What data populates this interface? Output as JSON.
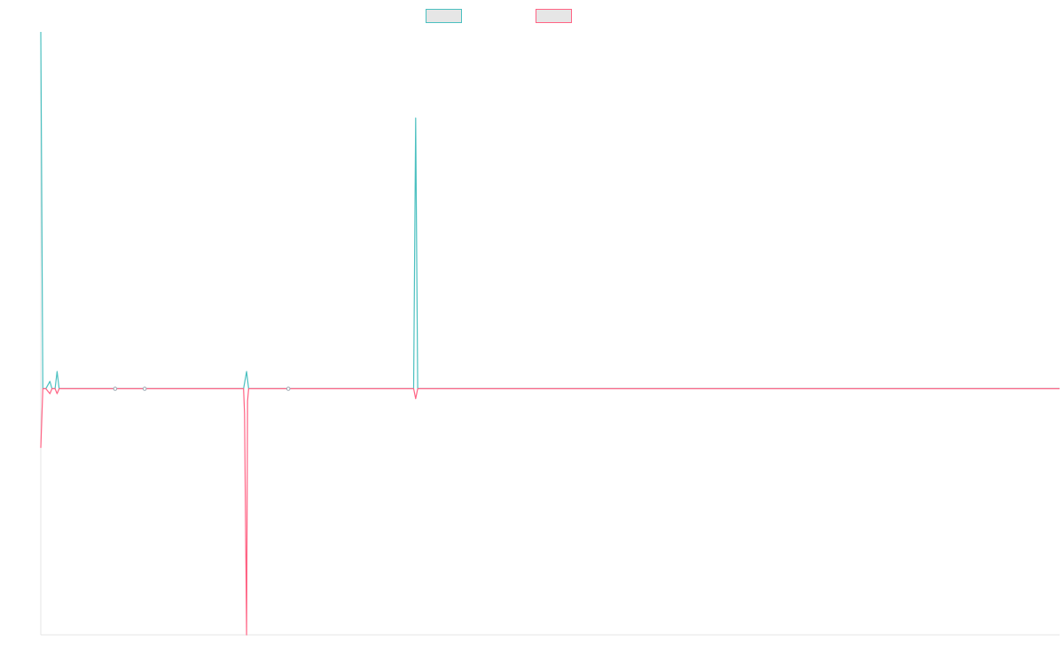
{
  "chart_data": {
    "type": "line",
    "title": "",
    "xlabel": "",
    "ylabel": "",
    "legend": {
      "placement": "top-center",
      "entries": [
        {
          "series": 0,
          "label": ""
        },
        {
          "series": 1,
          "label": ""
        }
      ]
    },
    "grid": false,
    "axis_line_color": "#e6e6e6",
    "background": "#ffffff",
    "xlim": [
      0,
      1000
    ],
    "ylim": [
      -100,
      145
    ],
    "series": [
      {
        "color": "#4bc0c0",
        "fill": "#e6e6e6",
        "points": [
          [
            0,
            145
          ],
          [
            2,
            0
          ],
          [
            5,
            0
          ],
          [
            9,
            3
          ],
          [
            11,
            0
          ],
          [
            14,
            0
          ],
          [
            16,
            7
          ],
          [
            18,
            0
          ],
          [
            60,
            0
          ],
          [
            63,
            0
          ],
          [
            73,
            0
          ],
          [
            89,
            0
          ],
          [
            92,
            0
          ],
          [
            199,
            0
          ],
          [
            202,
            7
          ],
          [
            204,
            0
          ],
          [
            207,
            0
          ],
          [
            243,
            0
          ],
          [
            250,
            0
          ],
          [
            366,
            0
          ],
          [
            368,
            110
          ],
          [
            370,
            0
          ],
          [
            372,
            0
          ],
          [
            1000,
            0
          ]
        ]
      },
      {
        "color": "#ff6384",
        "fill": "#e6e6e6",
        "points": [
          [
            0,
            -24
          ],
          [
            2,
            0
          ],
          [
            5,
            0
          ],
          [
            9,
            -2
          ],
          [
            11,
            0
          ],
          [
            14,
            0
          ],
          [
            16,
            -2
          ],
          [
            18,
            0
          ],
          [
            60,
            0
          ],
          [
            63,
            0
          ],
          [
            73,
            0
          ],
          [
            89,
            0
          ],
          [
            92,
            0
          ],
          [
            199,
            0
          ],
          [
            200,
            -10
          ],
          [
            202,
            -100
          ],
          [
            203,
            -5
          ],
          [
            204,
            0
          ],
          [
            207,
            0
          ],
          [
            243,
            0
          ],
          [
            250,
            0
          ],
          [
            366,
            0
          ],
          [
            368,
            -4
          ],
          [
            370,
            0
          ],
          [
            372,
            0
          ],
          [
            1000,
            0
          ]
        ]
      }
    ],
    "markers": [
      {
        "x": 73,
        "y": 0,
        "color": "#9aa6b0"
      },
      {
        "x": 102,
        "y": 0,
        "color": "#9aa6b0"
      },
      {
        "x": 243,
        "y": 0,
        "color": "#9aa6b0"
      }
    ]
  }
}
